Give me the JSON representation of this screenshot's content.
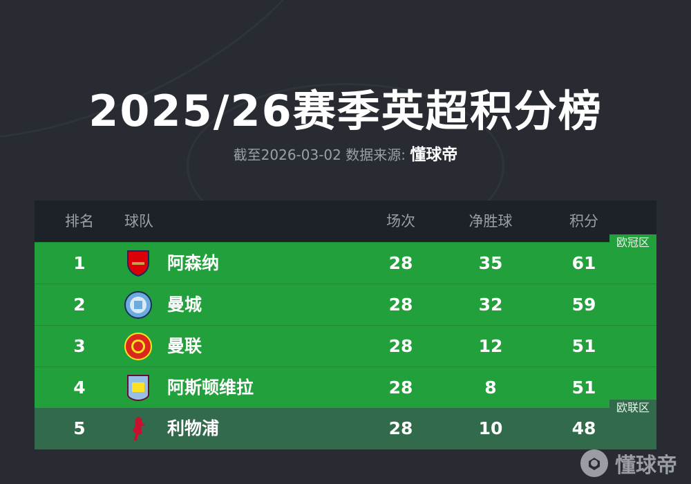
{
  "title": "2025/26赛季英超积分榜",
  "subtitle": {
    "prefix": "截至2026-03-02 数据来源: ",
    "brand": "懂球帝"
  },
  "headers": {
    "rank": "排名",
    "team": "球队",
    "played": "场次",
    "gd": "净胜球",
    "pts": "积分"
  },
  "zones": {
    "cl": "欧冠区",
    "el": "欧联区"
  },
  "colors": {
    "background": "#282c32",
    "header": "#1d2128",
    "champions_league": "#21a03c",
    "europa_league": "#326a4c"
  },
  "rows": [
    {
      "rank": "1",
      "team": "阿森纳",
      "badge": "arsenal-crest",
      "played": "28",
      "gd": "35",
      "pts": "61"
    },
    {
      "rank": "2",
      "team": "曼城",
      "badge": "man-city-crest",
      "played": "28",
      "gd": "32",
      "pts": "59"
    },
    {
      "rank": "3",
      "team": "曼联",
      "badge": "man-united-crest",
      "played": "28",
      "gd": "12",
      "pts": "51"
    },
    {
      "rank": "4",
      "team": "阿斯顿维拉",
      "badge": "aston-villa-crest",
      "played": "28",
      "gd": "8",
      "pts": "51"
    },
    {
      "rank": "5",
      "team": "利物浦",
      "badge": "liverpool-crest",
      "played": "28",
      "gd": "10",
      "pts": "48"
    }
  ],
  "watermark": "懂球帝"
}
